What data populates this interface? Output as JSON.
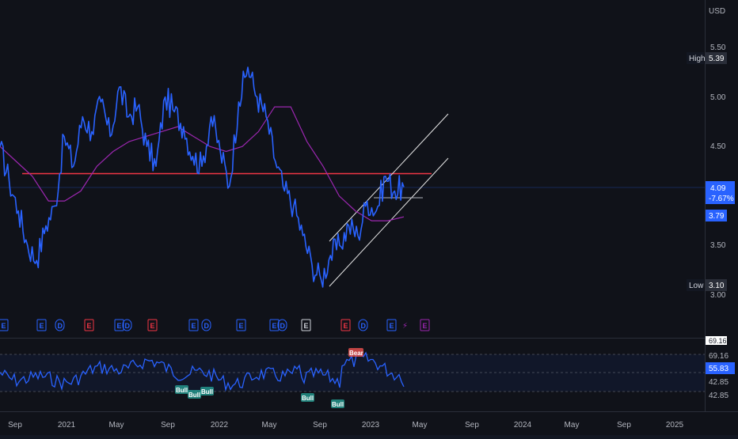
{
  "currency": "USD",
  "price_axis": {
    "ticks": [
      "5.50",
      "5.00",
      "4.50",
      "3.50",
      "3.00"
    ],
    "high_label": "High",
    "high_value": "5.39",
    "low_label": "Low",
    "low_value": "3.10",
    "last_price": "4.09",
    "last_change": "-7.67%",
    "ma_value": "3.79"
  },
  "rsi_axis": {
    "labels": [
      "69.16",
      "69.16",
      "55.83",
      "42.85",
      "42.85"
    ]
  },
  "time_axis": {
    "labels": [
      "Sep",
      "2021",
      "May",
      "Sep",
      "2022",
      "May",
      "Sep",
      "2023",
      "May",
      "Sep",
      "2024",
      "May",
      "Sep",
      "2025"
    ]
  },
  "events": {
    "labels": [
      "E",
      "E",
      "D",
      "E",
      "E",
      "D",
      "E",
      "E",
      "D",
      "E",
      "E",
      "D",
      "E",
      "E",
      "D",
      "E",
      "E"
    ]
  },
  "signals": {
    "bull": "Bull",
    "bear": "Bear"
  },
  "colors": {
    "price_line": "#2962ff",
    "moving_average": "#9c27b0",
    "resistance": "#f23645",
    "channel": "#ffffff",
    "rsi_line": "#2962ff"
  },
  "chart_data": {
    "type": "line",
    "ylim": [
      3.0,
      5.5
    ],
    "series": [
      {
        "values": [
          4.5,
          4.15,
          3.85,
          3.5,
          3.35,
          3.7,
          3.9,
          4.6,
          4.3,
          4.8,
          4.65,
          4.95,
          4.6,
          5.1,
          4.8,
          4.9,
          4.5,
          4.3,
          5.0,
          4.85,
          4.7,
          4.4,
          4.3,
          4.8,
          4.45,
          4.1,
          4.95,
          5.3,
          5.0,
          4.8,
          4.35,
          4.05,
          3.9,
          3.6,
          3.3,
          3.15,
          3.4,
          3.5,
          3.7,
          3.6,
          3.95,
          3.85,
          4.2,
          4.05,
          4.09
        ]
      },
      {
        "values": [
          4.5,
          4.35,
          4.2,
          3.95,
          3.95,
          4.05,
          4.3,
          4.45,
          4.55,
          4.6,
          4.65,
          4.7,
          4.6,
          4.5,
          4.45,
          4.5,
          4.65,
          4.9,
          4.9,
          4.55,
          4.3,
          4.0,
          3.85,
          3.75,
          3.75,
          3.79
        ]
      }
    ]
  }
}
